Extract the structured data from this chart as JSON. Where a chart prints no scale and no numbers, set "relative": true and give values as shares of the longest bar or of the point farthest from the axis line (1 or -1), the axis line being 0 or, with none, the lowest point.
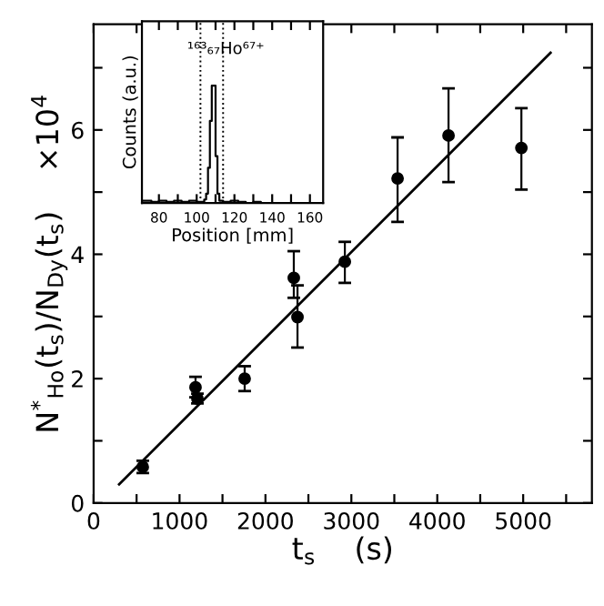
{
  "chart_data": [
    {
      "type": "scatter",
      "xlabel": "t$_{s}$    (s)",
      "ylabel": "N$^{*}$$_{Ho}$(t$_{s}$)/N$_{Dy}$(t$_{s}$)    ×10$^{4}$",
      "xlim": [
        0,
        5800
      ],
      "ylim": [
        0,
        7.7
      ],
      "xticks": [
        0,
        {
          "value": 500,
          "label": null
        },
        1000,
        {
          "value": 1500,
          "label": null
        },
        2000,
        {
          "value": 2500,
          "label": null
        },
        3000,
        {
          "value": 3500,
          "label": null
        },
        4000,
        {
          "value": 4500,
          "label": null
        },
        5000,
        {
          "value": 5500,
          "label": null
        }
      ],
      "yticks": [
        0,
        {
          "value": 1,
          "label": null
        },
        2,
        {
          "value": 3,
          "label": null
        },
        4,
        {
          "value": 5,
          "label": null
        },
        6,
        {
          "value": 7,
          "label": null
        }
      ],
      "grid": false,
      "legend": false,
      "series": [
        {
          "marker": "circle",
          "color": "#000000",
          "x": [
            572,
            1186,
            1208,
            1758,
            2330,
            2373,
            2924,
            3538,
            4131,
            4979
          ],
          "values": [
            0.58,
            1.86,
            1.68,
            2.0,
            3.62,
            2.99,
            3.88,
            5.22,
            5.91,
            5.71
          ],
          "errors": [
            [
              0.48,
              0.68
            ],
            [
              1.7,
              2.03
            ],
            [
              1.6,
              1.76
            ],
            [
              1.8,
              2.2
            ],
            [
              3.3,
              4.05
            ],
            [
              2.5,
              3.5
            ],
            [
              3.54,
              4.2
            ],
            [
              4.52,
              5.88
            ],
            [
              5.16,
              6.67
            ],
            [
              5.04,
              6.35
            ]
          ]
        },
        {
          "type": "line",
          "color": "#000000",
          "x": [
            297,
            5318
          ],
          "values": [
            0.3,
            7.24
          ]
        }
      ]
    },
    {
      "type": "step",
      "xlabel": "Position [mm]",
      "ylabel": "Counts (a.u.)",
      "relative": true,
      "tick_labels": "x",
      "xlim": [
        71,
        167
      ],
      "xticks": [
        80,
        {
          "value": 90,
          "label": null
        },
        100,
        {
          "value": 110,
          "label": null
        },
        120,
        {
          "value": 130,
          "label": null
        },
        140,
        {
          "value": 150,
          "label": null
        },
        160
      ],
      "annotations": [
        "¹⁶³₆₇Ho⁶⁷⁺"
      ],
      "grid": false,
      "legend": false,
      "ref_lines": [
        {
          "axis": "x",
          "value": 102,
          "label": null,
          "line_style": "dotted",
          "color": "#000000"
        },
        {
          "axis": "x",
          "value": 114,
          "label": null,
          "line_style": "dotted",
          "color": "#000000"
        }
      ],
      "series": [
        {
          "color": "#000000",
          "x": [
            72,
            76,
            80,
            84,
            88,
            92,
            96,
            100,
            104,
            105,
            106,
            107,
            108,
            109,
            110,
            111,
            112,
            114,
            118,
            122,
            126,
            130,
            134,
            138,
            142
          ],
          "values": [
            0.02,
            0.01,
            0.02,
            0.01,
            0.02,
            0.01,
            0.02,
            0.01,
            0.03,
            0.08,
            0.3,
            0.7,
            1.0,
            1.0,
            0.4,
            0.08,
            0.02,
            0.01,
            0.02,
            0.01,
            0,
            0.01,
            0,
            0,
            0
          ]
        }
      ]
    }
  ]
}
